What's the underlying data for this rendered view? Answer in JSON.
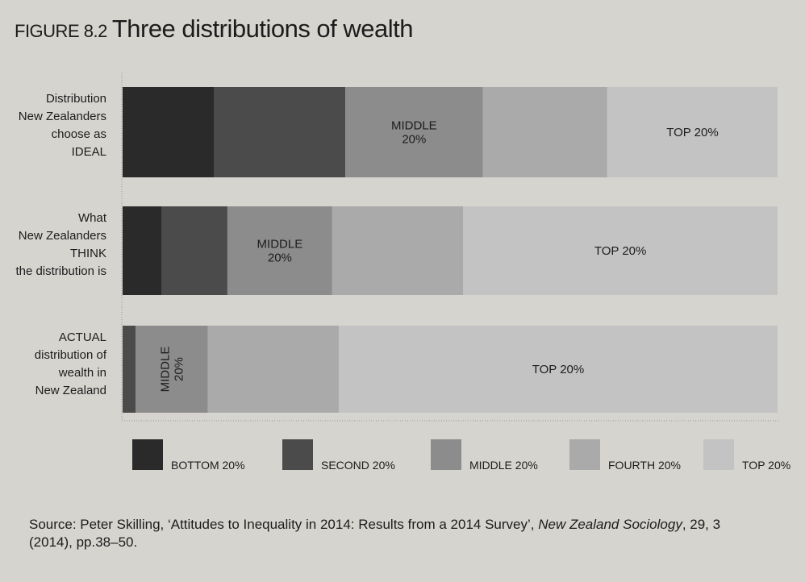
{
  "chart_data": {
    "type": "bar",
    "stacked": true,
    "orientation": "horizontal",
    "figure_label": "FIGURE 8.2",
    "title": "Three distributions of wealth",
    "categories": [
      [
        "Distribution",
        "New Zealanders",
        "choose as",
        "IDEAL"
      ],
      [
        "What",
        "New Zealanders",
        "THINK",
        "the distribution is"
      ],
      [
        "ACTUAL",
        "distribution of",
        "wealth in",
        "New Zealand"
      ]
    ],
    "unit": "percent of total wealth",
    "xlim": [
      0,
      100
    ],
    "series": [
      {
        "name": "BOTTOM 20%",
        "color": "#2a2a2a",
        "values": [
          14,
          6,
          0
        ]
      },
      {
        "name": "SECOND 20%",
        "color": "#4b4b4b",
        "values": [
          20,
          10,
          2
        ]
      },
      {
        "name": "MIDDLE 20%",
        "color": "#8c8c8c",
        "values": [
          21,
          16,
          11
        ]
      },
      {
        "name": "FOURTH 20%",
        "color": "#aaaaaa",
        "values": [
          19,
          20,
          20
        ]
      },
      {
        "name": "TOP 20%",
        "color": "#c3c3c3",
        "values": [
          26,
          48,
          67
        ]
      }
    ],
    "segment_labels": [
      {
        "row": 0,
        "series": 2,
        "lines": [
          "MIDDLE",
          "20%"
        ]
      },
      {
        "row": 0,
        "series": 4,
        "lines": [
          "TOP 20%"
        ]
      },
      {
        "row": 1,
        "series": 2,
        "lines": [
          "MIDDLE",
          "20%"
        ]
      },
      {
        "row": 1,
        "series": 4,
        "lines": [
          "TOP 20%"
        ]
      },
      {
        "row": 2,
        "series": 2,
        "lines": [
          "MIDDLE",
          "20%"
        ],
        "rotated": true
      },
      {
        "row": 2,
        "series": 4,
        "lines": [
          "TOP 20%"
        ]
      }
    ],
    "legend": "bottom"
  },
  "source": {
    "prefix": "Source: Peter Skilling, ‘Attitudes to Inequality in 2014: Results from a 2014 Survey’, ",
    "journal": "New Zealand Sociology",
    "suffix": ", 29, 3 (2014), pp.38–50."
  }
}
